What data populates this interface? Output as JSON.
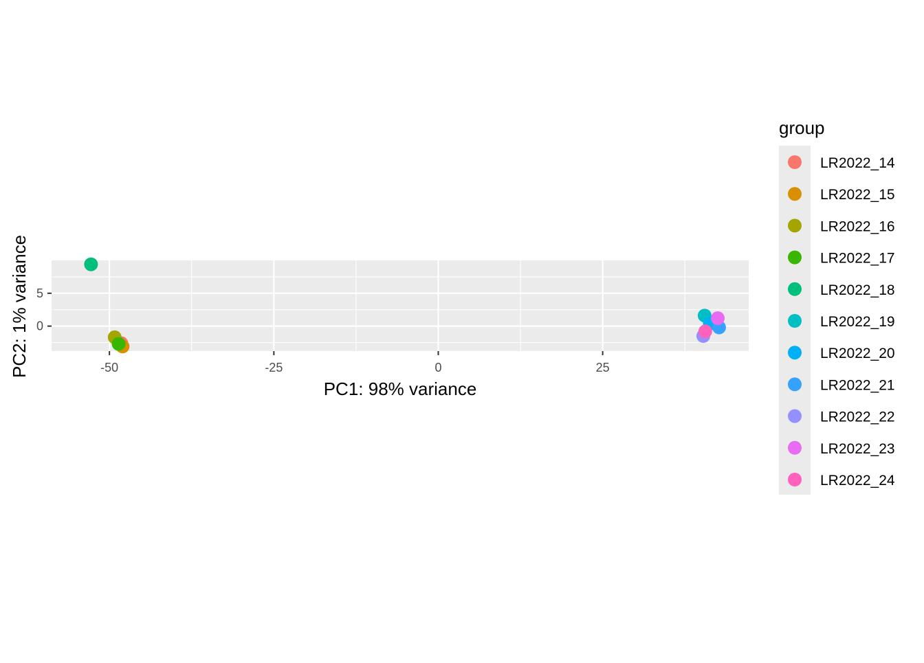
{
  "chart_data": {
    "type": "scatter",
    "xlabel": "PC1: 98% variance",
    "ylabel": "PC2: 1% variance",
    "xlim": [
      -58.8,
      47.2
    ],
    "ylim": [
      -3.8,
      10.0
    ],
    "x_ticks": [
      -50,
      -25,
      0,
      25
    ],
    "x_tick_labels": [
      "-50",
      "-25",
      "0",
      "25"
    ],
    "y_ticks": [
      0,
      5
    ],
    "y_tick_labels": [
      "0",
      "5"
    ],
    "grid": true,
    "legend": {
      "title": "group",
      "position": "right"
    },
    "series": [
      {
        "name": "LR2022_14",
        "color": "#F8766D",
        "points": [
          {
            "x": -48.2,
            "y": -2.6
          }
        ]
      },
      {
        "name": "LR2022_15",
        "color": "#D89000",
        "points": [
          {
            "x": -48.0,
            "y": -3.1
          }
        ]
      },
      {
        "name": "LR2022_16",
        "color": "#A3A500",
        "points": [
          {
            "x": -49.2,
            "y": -1.7
          }
        ]
      },
      {
        "name": "LR2022_17",
        "color": "#39B600",
        "points": [
          {
            "x": -48.6,
            "y": -2.7
          }
        ]
      },
      {
        "name": "LR2022_18",
        "color": "#00BF7D",
        "points": [
          {
            "x": -52.8,
            "y": 9.4
          }
        ]
      },
      {
        "name": "LR2022_19",
        "color": "#00BFC4",
        "points": [
          {
            "x": 40.5,
            "y": 1.6
          }
        ]
      },
      {
        "name": "LR2022_20",
        "color": "#00B0F6",
        "points": [
          {
            "x": 41.3,
            "y": 0.4
          }
        ]
      },
      {
        "name": "LR2022_21",
        "color": "#35A2FF",
        "points": [
          {
            "x": 42.7,
            "y": -0.2
          }
        ]
      },
      {
        "name": "LR2022_22",
        "color": "#9590FF",
        "points": [
          {
            "x": 40.3,
            "y": -1.5
          }
        ]
      },
      {
        "name": "LR2022_23",
        "color": "#E76BF3",
        "points": [
          {
            "x": 42.5,
            "y": 1.2
          }
        ]
      },
      {
        "name": "LR2022_24",
        "color": "#FF62BC",
        "points": [
          {
            "x": 40.6,
            "y": -0.8
          }
        ]
      }
    ]
  }
}
